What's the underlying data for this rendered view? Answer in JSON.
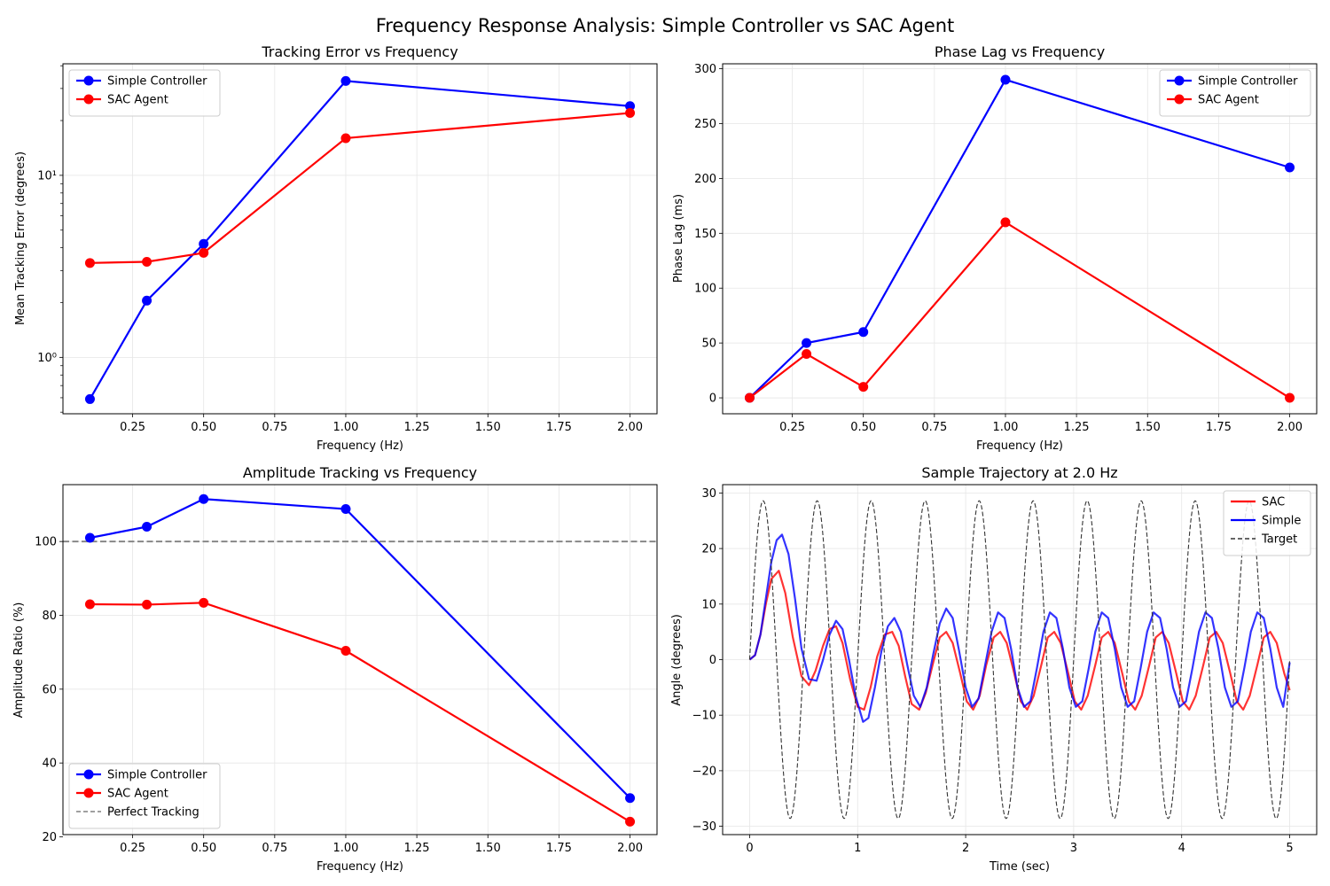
{
  "figure": {
    "title": "Frequency Response Analysis: Simple Controller vs SAC Agent"
  },
  "chart_data": [
    {
      "type": "line",
      "title": "Tracking Error vs Frequency",
      "xlabel": "Frequency (Hz)",
      "ylabel": "Mean Tracking Error (degrees)",
      "yscale": "log",
      "xlim": [
        0.005,
        2.095
      ],
      "ylim": [
        0.49,
        41
      ],
      "xticks": [
        0.25,
        0.5,
        0.75,
        1.0,
        1.25,
        1.5,
        1.75,
        2.0
      ],
      "xtick_labels": [
        "0.25",
        "0.50",
        "0.75",
        "1.00",
        "1.25",
        "1.50",
        "1.75",
        "2.00"
      ],
      "yticks": [
        1,
        10
      ],
      "ytick_labels": [
        "10⁰",
        "10¹"
      ],
      "grid": true,
      "legend": "upper left",
      "x": [
        0.1,
        0.3,
        0.5,
        1.0,
        2.0
      ],
      "series": [
        {
          "name": "Simple Controller",
          "color": "#0000ff",
          "values": [
            0.59,
            2.05,
            4.2,
            33.0,
            24.0
          ]
        },
        {
          "name": "SAC Agent",
          "color": "#ff0000",
          "values": [
            3.3,
            3.35,
            3.75,
            16.0,
            22.0
          ]
        }
      ]
    },
    {
      "type": "line",
      "title": "Phase Lag vs Frequency",
      "xlabel": "Frequency (Hz)",
      "ylabel": "Phase Lag (ms)",
      "xlim": [
        0.005,
        2.095
      ],
      "ylim": [
        -14.5,
        304.5
      ],
      "xticks": [
        0.25,
        0.5,
        0.75,
        1.0,
        1.25,
        1.5,
        1.75,
        2.0
      ],
      "xtick_labels": [
        "0.25",
        "0.50",
        "0.75",
        "1.00",
        "1.25",
        "1.50",
        "1.75",
        "2.00"
      ],
      "yticks": [
        0,
        50,
        100,
        150,
        200,
        250,
        300
      ],
      "ytick_labels": [
        "0",
        "50",
        "100",
        "150",
        "200",
        "250",
        "300"
      ],
      "grid": true,
      "legend": "upper right",
      "x": [
        0.1,
        0.3,
        0.5,
        1.0,
        2.0
      ],
      "series": [
        {
          "name": "Simple Controller",
          "color": "#0000ff",
          "values": [
            0,
            50,
            60,
            290,
            210
          ]
        },
        {
          "name": "SAC Agent",
          "color": "#ff0000",
          "values": [
            0,
            40,
            10,
            160,
            0
          ]
        }
      ]
    },
    {
      "type": "line",
      "title": "Amplitude Tracking vs Frequency",
      "xlabel": "Frequency (Hz)",
      "ylabel": "Amplitude Ratio (%)",
      "xlim": [
        0.005,
        2.095
      ],
      "ylim": [
        20.6,
        115.4
      ],
      "xticks": [
        0.25,
        0.5,
        0.75,
        1.0,
        1.25,
        1.5,
        1.75,
        2.0
      ],
      "xtick_labels": [
        "0.25",
        "0.50",
        "0.75",
        "1.00",
        "1.25",
        "1.50",
        "1.75",
        "2.00"
      ],
      "yticks": [
        20,
        40,
        60,
        80,
        100
      ],
      "ytick_labels": [
        "20",
        "40",
        "60",
        "80",
        "100"
      ],
      "grid": true,
      "legend": "lower left",
      "x": [
        0.1,
        0.3,
        0.5,
        1.0,
        2.0
      ],
      "series": [
        {
          "name": "Simple Controller",
          "color": "#0000ff",
          "values": [
            101.0,
            104.0,
            111.5,
            108.8,
            30.5
          ]
        },
        {
          "name": "SAC Agent",
          "color": "#ff0000",
          "values": [
            83.0,
            82.9,
            83.4,
            70.4,
            24.1
          ]
        }
      ],
      "reference_line": {
        "name": "Perfect Tracking",
        "y": 100,
        "color": "#808080",
        "style": "dashed"
      }
    },
    {
      "type": "line",
      "title": "Sample Trajectory at 2.0 Hz",
      "xlabel": "Time (sec)",
      "ylabel": "Angle (degrees)",
      "xlim": [
        -0.25,
        5.25
      ],
      "ylim": [
        -31.5,
        31.5
      ],
      "xticks": [
        0,
        1,
        2,
        3,
        4,
        5
      ],
      "xtick_labels": [
        "0",
        "1",
        "2",
        "3",
        "4",
        "5"
      ],
      "yticks": [
        -30,
        -20,
        -10,
        0,
        10,
        20,
        30
      ],
      "ytick_labels": [
        "−30",
        "−20",
        "−10",
        "0",
        "10",
        "20",
        "30"
      ],
      "grid": true,
      "legend": "upper right",
      "series": [
        {
          "name": "SAC",
          "color": "#ff0000",
          "style": "solid",
          "t": [
            0,
            0.05,
            0.1,
            0.15,
            0.2,
            0.27,
            0.33,
            0.4,
            0.48,
            0.55,
            0.61,
            0.68,
            0.74,
            0.8,
            0.86,
            0.93,
            1.0,
            1.06,
            1.12,
            1.18,
            1.25,
            1.32,
            1.38,
            1.44,
            1.5,
            1.57,
            1.63,
            1.7,
            1.76,
            1.82,
            1.88,
            1.95,
            2.01,
            2.07,
            2.13,
            2.19,
            2.26,
            2.32,
            2.38,
            2.45,
            2.51,
            2.57,
            2.63,
            2.7,
            2.76,
            2.82,
            2.88,
            2.95,
            3.01,
            3.07,
            3.13,
            3.2,
            3.26,
            3.32,
            3.38,
            3.45,
            3.51,
            3.57,
            3.63,
            3.7,
            3.76,
            3.82,
            3.88,
            3.95,
            4.01,
            4.07,
            4.13,
            4.2,
            4.26,
            4.32,
            4.38,
            4.45,
            4.51,
            4.57,
            4.63,
            4.7,
            4.76,
            4.82,
            4.88,
            4.95,
            5.0
          ],
          "values": [
            0,
            0.8,
            4.5,
            10.0,
            14.5,
            16.0,
            12.0,
            4.0,
            -3.0,
            -4.6,
            -2.0,
            2.5,
            5.5,
            6.0,
            3.0,
            -3.5,
            -8.5,
            -9.0,
            -5.0,
            0.5,
            4.5,
            5.0,
            2.5,
            -3.0,
            -8.0,
            -9.0,
            -6.0,
            -0.5,
            4.0,
            5.0,
            3.0,
            -2.5,
            -7.5,
            -9.0,
            -6.5,
            -1.0,
            4.0,
            5.0,
            3.0,
            -2.5,
            -7.5,
            -9.0,
            -6.5,
            -1.0,
            4.0,
            5.0,
            3.0,
            -2.5,
            -7.5,
            -9.0,
            -6.5,
            -1.0,
            4.0,
            5.0,
            3.0,
            -2.5,
            -7.5,
            -9.0,
            -6.5,
            -1.0,
            4.0,
            5.0,
            3.0,
            -2.5,
            -7.5,
            -9.0,
            -6.5,
            -1.0,
            4.0,
            5.0,
            3.0,
            -2.5,
            -7.5,
            -9.0,
            -6.5,
            -1.0,
            4.0,
            5.0,
            3.0,
            -2.5,
            -5.5
          ]
        },
        {
          "name": "Simple",
          "color": "#0000ff",
          "style": "solid",
          "t": [
            0,
            0.05,
            0.1,
            0.15,
            0.2,
            0.25,
            0.3,
            0.36,
            0.42,
            0.48,
            0.55,
            0.62,
            0.68,
            0.74,
            0.8,
            0.86,
            0.92,
            0.98,
            1.05,
            1.1,
            1.16,
            1.22,
            1.28,
            1.34,
            1.4,
            1.46,
            1.52,
            1.58,
            1.64,
            1.7,
            1.76,
            1.82,
            1.88,
            1.94,
            2.0,
            2.06,
            2.12,
            2.18,
            2.24,
            2.3,
            2.36,
            2.42,
            2.48,
            2.54,
            2.6,
            2.66,
            2.72,
            2.78,
            2.84,
            2.9,
            2.96,
            3.02,
            3.08,
            3.14,
            3.2,
            3.26,
            3.32,
            3.38,
            3.44,
            3.5,
            3.56,
            3.62,
            3.68,
            3.74,
            3.8,
            3.86,
            3.92,
            3.98,
            4.04,
            4.1,
            4.16,
            4.22,
            4.28,
            4.34,
            4.4,
            4.46,
            4.52,
            4.58,
            4.64,
            4.7,
            4.76,
            4.82,
            4.88,
            4.94,
            5.0
          ],
          "values": [
            0,
            0.8,
            4.5,
            11.0,
            17.5,
            21.5,
            22.5,
            19.0,
            11.0,
            2.0,
            -3.5,
            -3.8,
            0.0,
            4.5,
            7.0,
            5.5,
            0.0,
            -6.5,
            -11.2,
            -10.5,
            -5.0,
            1.5,
            6.0,
            7.5,
            5.0,
            -1.0,
            -6.5,
            -8.5,
            -5.0,
            1.0,
            6.5,
            9.2,
            7.5,
            1.5,
            -5.0,
            -8.5,
            -7.0,
            -1.0,
            5.0,
            8.5,
            7.5,
            2.0,
            -5.0,
            -8.5,
            -7.5,
            -1.5,
            5.0,
            8.5,
            7.5,
            2.0,
            -5.0,
            -8.5,
            -7.5,
            -1.5,
            5.0,
            8.5,
            7.5,
            2.0,
            -5.0,
            -8.5,
            -7.5,
            -1.5,
            5.0,
            8.5,
            7.5,
            2.0,
            -5.0,
            -8.5,
            -7.5,
            -1.5,
            5.0,
            8.5,
            7.5,
            2.0,
            -5.0,
            -8.5,
            -7.5,
            -1.5,
            5.0,
            8.5,
            7.5,
            2.0,
            -5.0,
            -8.5,
            -0.5
          ]
        },
        {
          "name": "Target",
          "color": "#333333",
          "style": "dashed",
          "function": "28.6*sin(2*pi*2.0*t)",
          "amplitude": 28.6,
          "frequency_hz": 2.0,
          "t_range": [
            0,
            5
          ]
        }
      ]
    }
  ]
}
